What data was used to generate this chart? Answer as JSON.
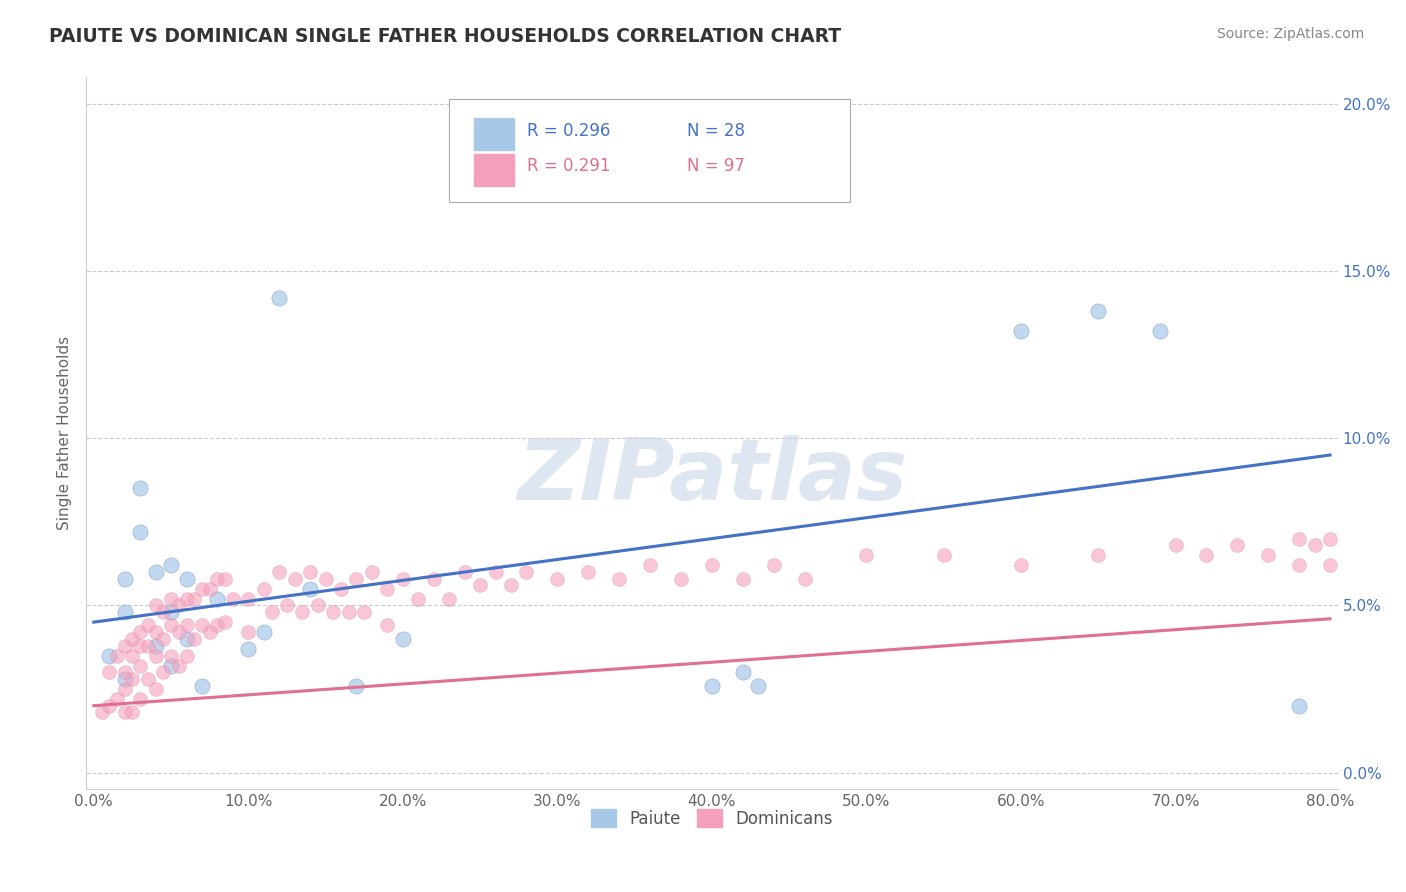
{
  "title": "PAIUTE VS DOMINICAN SINGLE FATHER HOUSEHOLDS CORRELATION CHART",
  "source_text": "Source: ZipAtlas.com",
  "ylabel": "Single Father Households",
  "xlabel": "",
  "xlim": [
    -0.005,
    0.805
  ],
  "ylim": [
    -0.005,
    0.208
  ],
  "xticks": [
    0.0,
    0.1,
    0.2,
    0.3,
    0.4,
    0.5,
    0.6,
    0.7,
    0.8
  ],
  "xticklabels": [
    "0.0%",
    "10.0%",
    "20.0%",
    "30.0%",
    "40.0%",
    "50.0%",
    "60.0%",
    "70.0%",
    "80.0%"
  ],
  "yticks": [
    0.0,
    0.05,
    0.1,
    0.15,
    0.2
  ],
  "yticklabels": [
    "0.0%",
    "5.0%",
    "10.0%",
    "15.0%",
    "20.0%"
  ],
  "paiute_color": "#a8c8e8",
  "dominican_color": "#f4a0bc",
  "paiute_line_color": "#4472c4",
  "dominican_line_color": "#e07090",
  "legend_R_paiute": "R = 0.296",
  "legend_N_paiute": "N = 28",
  "legend_R_dominican": "R = 0.291",
  "legend_N_dominican": "N = 97",
  "legend_label_paiute": "Paiute",
  "legend_label_dominican": "Dominicans",
  "watermark": "ZIPatlas",
  "paiute_line_start_y": 0.045,
  "paiute_line_end_y": 0.095,
  "dominican_line_start_y": 0.02,
  "dominican_line_end_y": 0.046,
  "paiute_x": [
    0.01,
    0.02,
    0.02,
    0.02,
    0.03,
    0.03,
    0.04,
    0.04,
    0.05,
    0.05,
    0.05,
    0.06,
    0.06,
    0.07,
    0.08,
    0.1,
    0.11,
    0.12,
    0.14,
    0.17,
    0.2,
    0.4,
    0.42,
    0.43,
    0.6,
    0.65,
    0.69,
    0.78
  ],
  "paiute_y": [
    0.035,
    0.058,
    0.048,
    0.028,
    0.085,
    0.072,
    0.06,
    0.038,
    0.062,
    0.048,
    0.032,
    0.058,
    0.04,
    0.026,
    0.052,
    0.037,
    0.042,
    0.142,
    0.055,
    0.026,
    0.04,
    0.026,
    0.03,
    0.026,
    0.132,
    0.138,
    0.132,
    0.02
  ],
  "dominican_x": [
    0.005,
    0.01,
    0.01,
    0.015,
    0.015,
    0.02,
    0.02,
    0.02,
    0.02,
    0.025,
    0.025,
    0.025,
    0.025,
    0.03,
    0.03,
    0.03,
    0.03,
    0.035,
    0.035,
    0.035,
    0.04,
    0.04,
    0.04,
    0.04,
    0.045,
    0.045,
    0.045,
    0.05,
    0.05,
    0.05,
    0.055,
    0.055,
    0.055,
    0.06,
    0.06,
    0.06,
    0.065,
    0.065,
    0.07,
    0.07,
    0.075,
    0.075,
    0.08,
    0.08,
    0.085,
    0.085,
    0.09,
    0.1,
    0.1,
    0.11,
    0.115,
    0.12,
    0.125,
    0.13,
    0.135,
    0.14,
    0.145,
    0.15,
    0.155,
    0.16,
    0.165,
    0.17,
    0.175,
    0.18,
    0.19,
    0.19,
    0.2,
    0.21,
    0.22,
    0.23,
    0.24,
    0.25,
    0.26,
    0.27,
    0.28,
    0.3,
    0.32,
    0.34,
    0.36,
    0.38,
    0.4,
    0.42,
    0.44,
    0.46,
    0.5,
    0.55,
    0.6,
    0.65,
    0.7,
    0.72,
    0.74,
    0.76,
    0.78,
    0.78,
    0.79,
    0.8,
    0.8
  ],
  "dominican_y": [
    0.018,
    0.03,
    0.02,
    0.035,
    0.022,
    0.038,
    0.03,
    0.025,
    0.018,
    0.04,
    0.035,
    0.028,
    0.018,
    0.042,
    0.038,
    0.032,
    0.022,
    0.044,
    0.038,
    0.028,
    0.05,
    0.042,
    0.035,
    0.025,
    0.048,
    0.04,
    0.03,
    0.052,
    0.044,
    0.035,
    0.05,
    0.042,
    0.032,
    0.052,
    0.044,
    0.035,
    0.052,
    0.04,
    0.055,
    0.044,
    0.055,
    0.042,
    0.058,
    0.044,
    0.058,
    0.045,
    0.052,
    0.052,
    0.042,
    0.055,
    0.048,
    0.06,
    0.05,
    0.058,
    0.048,
    0.06,
    0.05,
    0.058,
    0.048,
    0.055,
    0.048,
    0.058,
    0.048,
    0.06,
    0.055,
    0.044,
    0.058,
    0.052,
    0.058,
    0.052,
    0.06,
    0.056,
    0.06,
    0.056,
    0.06,
    0.058,
    0.06,
    0.058,
    0.062,
    0.058,
    0.062,
    0.058,
    0.062,
    0.058,
    0.065,
    0.065,
    0.062,
    0.065,
    0.068,
    0.065,
    0.068,
    0.065,
    0.07,
    0.062,
    0.068,
    0.07,
    0.062
  ]
}
